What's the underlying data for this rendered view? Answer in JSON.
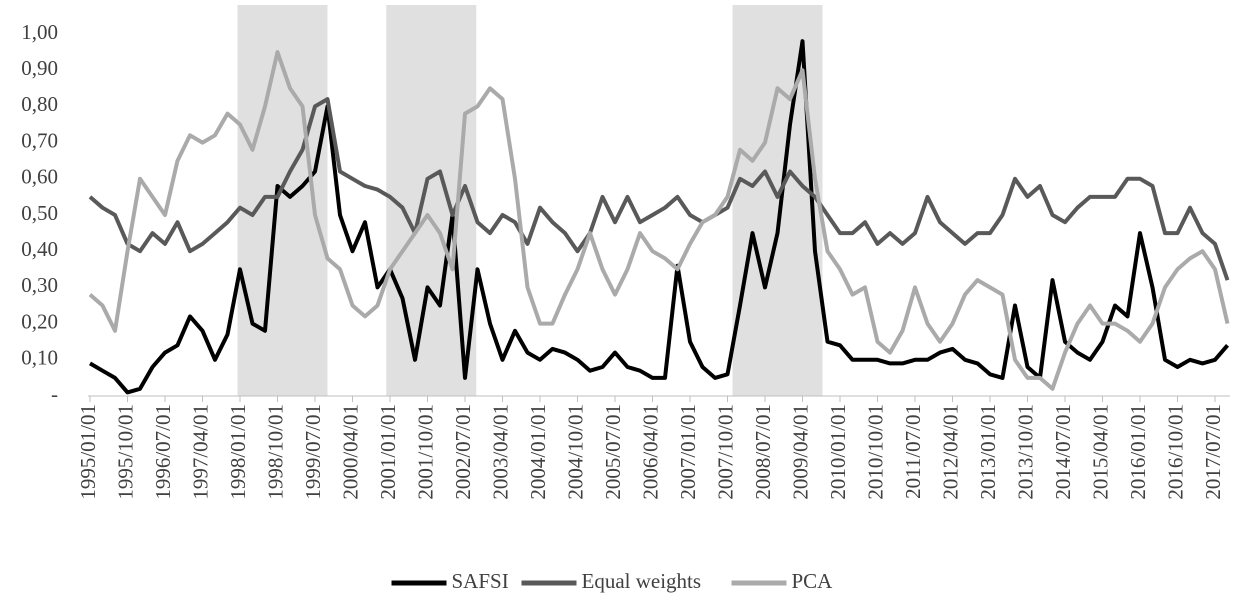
{
  "chart_data": {
    "type": "line",
    "categories": [
      "1995/01/01",
      null,
      null,
      "1995/10/01",
      null,
      null,
      "1996/07/01",
      null,
      null,
      "1997/04/01",
      null,
      null,
      "1998/01/01",
      null,
      null,
      "1998/10/01",
      null,
      null,
      "1999/07/01",
      null,
      null,
      "2000/04/01",
      null,
      null,
      "2001/01/01",
      null,
      null,
      "2001/10/01",
      null,
      null,
      "2002/07/01",
      null,
      null,
      "2003/04/01",
      null,
      null,
      "2004/01/01",
      null,
      null,
      "2004/10/01",
      null,
      null,
      "2005/07/01",
      null,
      null,
      "2006/04/01",
      null,
      null,
      "2007/01/01",
      null,
      null,
      "2007/10/01",
      null,
      null,
      "2008/07/01",
      null,
      null,
      "2009/04/01",
      null,
      null,
      "2010/01/01",
      null,
      null,
      "2010/10/01",
      null,
      null,
      "2011/07/01",
      null,
      null,
      "2012/04/01",
      null,
      null,
      "2013/01/01",
      null,
      null,
      "2013/10/01",
      null,
      null,
      "2014/07/01",
      null,
      null,
      "2015/04/01",
      null,
      null,
      "2016/01/01",
      null,
      null,
      "2016/10/01",
      null,
      null,
      "2017/07/01",
      null
    ],
    "series": [
      {
        "name": "SAFSI",
        "color": "#000000",
        "values": [
          0.09,
          0.07,
          0.05,
          0.01,
          0.02,
          0.08,
          0.12,
          0.14,
          0.22,
          0.18,
          0.1,
          0.17,
          0.35,
          0.2,
          0.18,
          0.58,
          0.55,
          0.58,
          0.62,
          0.8,
          0.5,
          0.4,
          0.48,
          0.3,
          0.35,
          0.27,
          0.1,
          0.3,
          0.25,
          0.5,
          0.05,
          0.35,
          0.2,
          0.1,
          0.18,
          0.12,
          0.1,
          0.13,
          0.12,
          0.1,
          0.07,
          0.08,
          0.12,
          0.08,
          0.07,
          0.05,
          0.05,
          0.36,
          0.15,
          0.08,
          0.05,
          0.06,
          0.25,
          0.45,
          0.3,
          0.45,
          0.75,
          0.98,
          0.4,
          0.15,
          0.14,
          0.1,
          0.1,
          0.1,
          0.09,
          0.09,
          0.1,
          0.1,
          0.12,
          0.13,
          0.1,
          0.09,
          0.06,
          0.05,
          0.25,
          0.08,
          0.05,
          0.32,
          0.15,
          0.12,
          0.1,
          0.15,
          0.25,
          0.22,
          0.45,
          0.3,
          0.1,
          0.08,
          0.1,
          0.09,
          0.1,
          0.14
        ]
      },
      {
        "name": "Equal weights",
        "color": "#595959",
        "values": [
          0.55,
          0.52,
          0.5,
          0.42,
          0.4,
          0.45,
          0.42,
          0.48,
          0.4,
          0.42,
          0.45,
          0.48,
          0.52,
          0.5,
          0.55,
          0.55,
          0.62,
          0.68,
          0.8,
          0.82,
          0.62,
          0.6,
          0.58,
          0.57,
          0.55,
          0.52,
          0.45,
          0.6,
          0.62,
          0.5,
          0.58,
          0.48,
          0.45,
          0.5,
          0.48,
          0.42,
          0.52,
          0.48,
          0.45,
          0.4,
          0.45,
          0.55,
          0.48,
          0.55,
          0.48,
          0.5,
          0.52,
          0.55,
          0.5,
          0.48,
          0.5,
          0.52,
          0.6,
          0.58,
          0.62,
          0.55,
          0.62,
          0.58,
          0.55,
          0.5,
          0.45,
          0.45,
          0.48,
          0.42,
          0.45,
          0.42,
          0.45,
          0.55,
          0.48,
          0.45,
          0.42,
          0.45,
          0.45,
          0.5,
          0.6,
          0.55,
          0.58,
          0.5,
          0.48,
          0.52,
          0.55,
          0.55,
          0.55,
          0.6,
          0.6,
          0.58,
          0.45,
          0.45,
          0.52,
          0.45,
          0.42,
          0.32
        ]
      },
      {
        "name": "PCA",
        "color": "#aaaaaa",
        "values": [
          0.28,
          0.25,
          0.18,
          0.4,
          0.6,
          0.55,
          0.5,
          0.65,
          0.72,
          0.7,
          0.72,
          0.78,
          0.75,
          0.68,
          0.8,
          0.95,
          0.85,
          0.8,
          0.5,
          0.38,
          0.35,
          0.25,
          0.22,
          0.25,
          0.35,
          0.4,
          0.45,
          0.5,
          0.45,
          0.35,
          0.78,
          0.8,
          0.85,
          0.82,
          0.6,
          0.3,
          0.2,
          0.2,
          0.28,
          0.35,
          0.45,
          0.35,
          0.28,
          0.35,
          0.45,
          0.4,
          0.38,
          0.35,
          0.42,
          0.48,
          0.5,
          0.55,
          0.68,
          0.65,
          0.7,
          0.85,
          0.82,
          0.9,
          0.6,
          0.4,
          0.35,
          0.28,
          0.3,
          0.15,
          0.12,
          0.18,
          0.3,
          0.2,
          0.15,
          0.2,
          0.28,
          0.32,
          0.3,
          0.28,
          0.1,
          0.05,
          0.05,
          0.02,
          0.12,
          0.2,
          0.25,
          0.2,
          0.2,
          0.18,
          0.15,
          0.2,
          0.3,
          0.35,
          0.38,
          0.4,
          0.35,
          0.2
        ]
      }
    ],
    "shaded_periods": [
      [
        11.8,
        19
      ],
      [
        23.7,
        30.9
      ],
      [
        51.4,
        58.6
      ]
    ],
    "shade_color": "#e0e0e0",
    "ylim": [
      0,
      1.08
    ],
    "yticks": [
      {
        "value": 0,
        "label": "-"
      },
      {
        "value": 0.1,
        "label": "0,10"
      },
      {
        "value": 0.2,
        "label": "0,20"
      },
      {
        "value": 0.3,
        "label": "0,30"
      },
      {
        "value": 0.4,
        "label": "0,40"
      },
      {
        "value": 0.5,
        "label": "0,50"
      },
      {
        "value": 0.6,
        "label": "0,60"
      },
      {
        "value": 0.7,
        "label": "0,70"
      },
      {
        "value": 0.8,
        "label": "0,80"
      },
      {
        "value": 0.9,
        "label": "0,90"
      },
      {
        "value": 1.0,
        "label": "1,00"
      }
    ],
    "legend": "bottom"
  }
}
